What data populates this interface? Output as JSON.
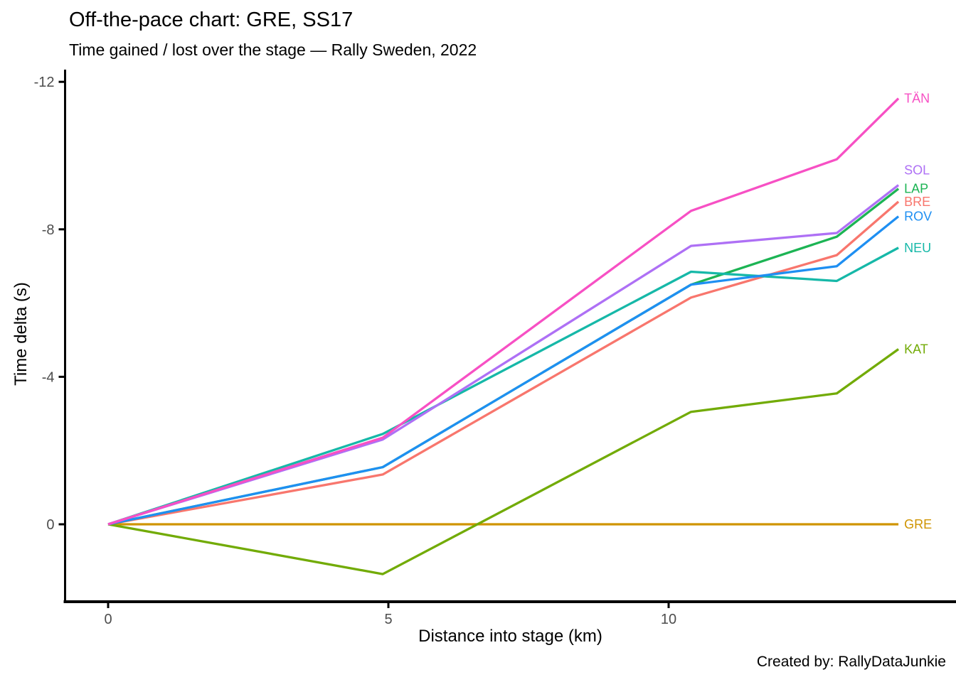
{
  "caption": "Created by: RallyDataJunkie",
  "chart_data": {
    "type": "line",
    "title": "Off-the-pace chart: GRE, SS17",
    "subtitle": "Time gained / lost over the stage — Rally Sweden, 2022",
    "xlabel": "Distance into stage (km)",
    "ylabel": "Time delta (s)",
    "x_ticks": [
      0,
      5,
      10
    ],
    "y_ticks": [
      0,
      -4,
      -8,
      -12
    ],
    "xlim": [
      0,
      14.35
    ],
    "ylim": [
      2.1,
      -12.35
    ],
    "y_axis_reversed": true,
    "grid": false,
    "legend_position": "right-end-direct-labels",
    "tick_label_color": "#4D4D4D",
    "axis_line_color": "#000000",
    "x": [
      0,
      4.9,
      10.4,
      13.0,
      14.1
    ],
    "series": [
      {
        "name": "BRE",
        "color": "#F8766D",
        "values": [
          0,
          -1.35,
          -6.15,
          -7.3,
          -8.75
        ],
        "label_dy": 0
      },
      {
        "name": "GRE",
        "color": "#CF9400",
        "values": [
          0,
          0,
          0,
          0,
          0
        ],
        "label_dy": 0
      },
      {
        "name": "KAT",
        "color": "#72AB06",
        "values": [
          0,
          1.35,
          -3.05,
          -3.55,
          -4.75
        ],
        "label_dy": 0
      },
      {
        "name": "LAP",
        "color": "#1CB454",
        "values": [
          0,
          -1.55,
          -6.5,
          -7.8,
          -9.1
        ],
        "label_dy": 0
      },
      {
        "name": "NEU",
        "color": "#16B8A8",
        "values": [
          0,
          -2.45,
          -6.85,
          -6.6,
          -7.5
        ],
        "label_dy": 0
      },
      {
        "name": "ROV",
        "color": "#1E8FF2",
        "values": [
          0,
          -1.55,
          -6.5,
          -7.0,
          -8.35
        ],
        "label_dy": 0
      },
      {
        "name": "SOL",
        "color": "#AE70F5",
        "values": [
          0,
          -2.3,
          -7.55,
          -7.9,
          -9.2
        ],
        "label_dy": -21
      },
      {
        "name": "TÄN",
        "color": "#F750C4",
        "values": [
          0,
          -2.35,
          -8.5,
          -9.9,
          -11.55
        ],
        "label_dy": 0
      }
    ]
  }
}
